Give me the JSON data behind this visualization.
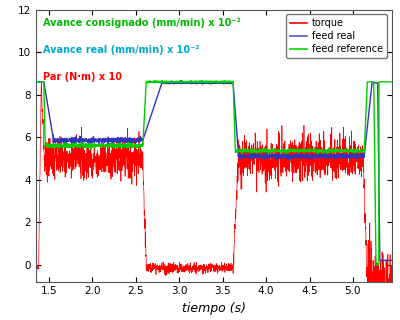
{
  "xlabel": "tiempo (s)",
  "xlim": [
    1.35,
    5.45
  ],
  "ylim": [
    -0.8,
    12
  ],
  "yticks": [
    0,
    2,
    4,
    6,
    8,
    10,
    12
  ],
  "xticks": [
    1.5,
    2,
    2.5,
    3,
    3.5,
    4,
    4.5,
    5
  ],
  "legend_labels": [
    "torque",
    "feed real",
    "feed reference"
  ],
  "legend_colors": [
    "#ff0000",
    "#5555dd",
    "#00dd00"
  ],
  "label_green": "Avance consignado (mm/min) x 10⁻²",
  "label_cyan": "Avance real (mm/min) x 10⁻²",
  "label_red": "Par (N·m) x 10",
  "bg_color": "#ffffff",
  "torque_color": "#ff0000",
  "feed_real_color": "#3333bb",
  "feed_ref_color": "#00cc00",
  "seed": 42
}
